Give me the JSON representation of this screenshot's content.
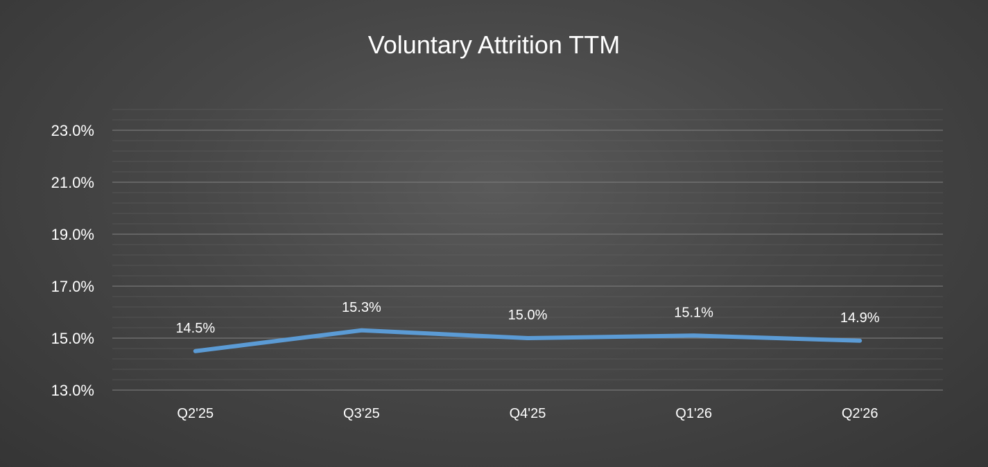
{
  "chart_data": {
    "type": "line",
    "title": "Voluntary Attrition TTM",
    "xlabel": "",
    "ylabel": "",
    "categories": [
      "Q2'25",
      "Q3'25",
      "Q4'25",
      "Q1'26",
      "Q2'26"
    ],
    "series": [
      {
        "name": "Voluntary Attrition TTM",
        "values": [
          14.5,
          15.3,
          15.0,
          15.1,
          14.9
        ],
        "labels": [
          "14.5%",
          "15.3%",
          "15.0%",
          "15.1%",
          "14.9%"
        ],
        "color": "#5b9bd5"
      }
    ],
    "ylim": [
      13.0,
      23.8
    ],
    "yticks": [
      13.0,
      15.0,
      17.0,
      19.0,
      21.0,
      23.0
    ],
    "ytick_labels": [
      "13.0%",
      "15.0%",
      "17.0%",
      "19.0%",
      "21.0%",
      "23.0%"
    ],
    "minor_grid_step": 0.4,
    "grid": true,
    "legend": "none"
  },
  "colors": {
    "line": "#5b9bd5",
    "grid": "#6a6a6a",
    "text": "#ffffff"
  }
}
